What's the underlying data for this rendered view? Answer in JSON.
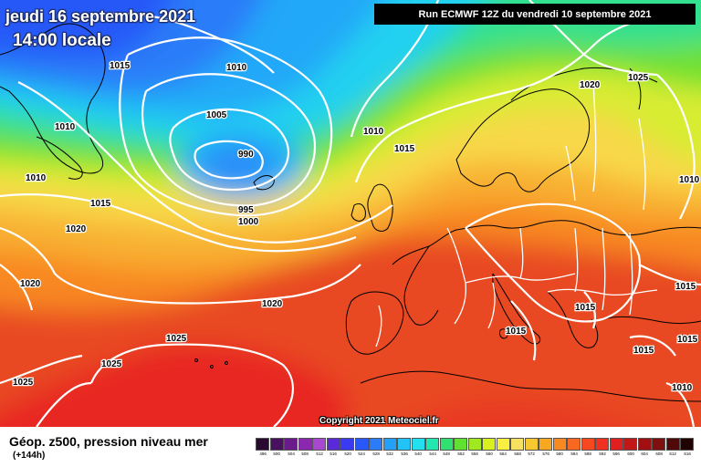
{
  "header": {
    "date": "jeudi 16 septembre 2021",
    "time": "14:00 locale",
    "run": "Run ECMWF 12Z du vendredi 10 septembre 2021"
  },
  "footer": {
    "caption": "Géop. z500, pression niveau mer",
    "subcaption": "(+144h)",
    "copyright": "Copyright 2021 Meteociel.fr"
  },
  "isobar_labels": {
    "l1": "1015",
    "l2": "1010",
    "l3": "1005",
    "l4": "990",
    "l5": "995",
    "l6": "1000",
    "l7": "1010",
    "l8": "1010",
    "l9": "1015",
    "l10": "1010",
    "l11": "1015",
    "l12": "1020",
    "l13": "1020",
    "l14": "1020",
    "l15": "1025",
    "l16": "1025",
    "l17": "1025",
    "l18": "1020",
    "l19": "1025",
    "l20": "1010",
    "l21": "1015",
    "l22": "1015",
    "l23": "1015",
    "l24": "1015",
    "l25": "1015",
    "l26": "1010"
  },
  "legend": {
    "items": [
      {
        "label": "496",
        "color": "#2a0a30"
      },
      {
        "label": "500",
        "color": "#4a1060"
      },
      {
        "label": "504",
        "color": "#6a1a8a"
      },
      {
        "label": "508",
        "color": "#8a28b0"
      },
      {
        "label": "512",
        "color": "#a848d0"
      },
      {
        "label": "516",
        "color": "#5a2ad8"
      },
      {
        "label": "520",
        "color": "#3a3af0"
      },
      {
        "label": "524",
        "color": "#2858f8"
      },
      {
        "label": "528",
        "color": "#2a7cf8"
      },
      {
        "label": "532",
        "color": "#24a0f8"
      },
      {
        "label": "536",
        "color": "#22c4f8"
      },
      {
        "label": "540",
        "color": "#22e0f0"
      },
      {
        "label": "544",
        "color": "#22e8b0"
      },
      {
        "label": "548",
        "color": "#30e070"
      },
      {
        "label": "552",
        "color": "#60e030"
      },
      {
        "label": "556",
        "color": "#a0e820"
      },
      {
        "label": "560",
        "color": "#d8f020"
      },
      {
        "label": "564",
        "color": "#f8f040"
      },
      {
        "label": "568",
        "color": "#f8e060"
      },
      {
        "label": "572",
        "color": "#f8c830"
      },
      {
        "label": "576",
        "color": "#f8a820"
      },
      {
        "label": "580",
        "color": "#f88820"
      },
      {
        "label": "584",
        "color": "#f86820"
      },
      {
        "label": "588",
        "color": "#f84820"
      },
      {
        "label": "592",
        "color": "#f03020"
      },
      {
        "label": "596",
        "color": "#e02020"
      },
      {
        "label": "600",
        "color": "#c01818"
      },
      {
        "label": "604",
        "color": "#a01010"
      },
      {
        "label": "608",
        "color": "#801010"
      },
      {
        "label": "612",
        "color": "#500808"
      },
      {
        "label": "616",
        "color": "#200404"
      }
    ]
  }
}
